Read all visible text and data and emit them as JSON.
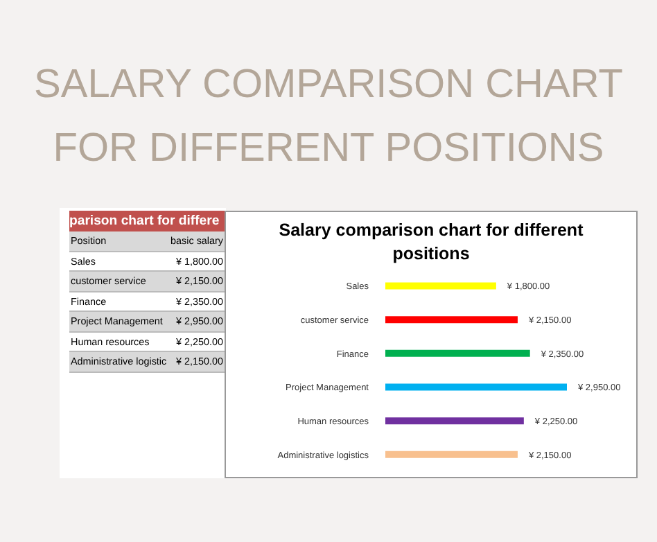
{
  "chart_data": [
    {
      "type": "other",
      "title": "SALARY COMPARISON CHART FOR DIFFERENT POSITIONS",
      "subtitle": "parison chart for differe",
      "annotations": [
        "Position",
        "basic salary",
        "Sales",
        "¥ 1,800.00",
        "customer service",
        "¥ 2,150.00",
        "Finance",
        "¥ 2,350.00",
        "Project Management",
        "¥ 2,950.00",
        "Human resources",
        "¥ 2,250.00",
        "Administrative logistic",
        "¥ 2,150.00"
      ]
    },
    {
      "type": "bar",
      "orientation": "horizontal",
      "title": "Salary comparison chart for different positions",
      "categories": [
        "Sales",
        "customer service",
        "Finance",
        "Project Management",
        "Human resources",
        "Administrative logistics"
      ],
      "values": [
        1800,
        2150,
        2350,
        2950,
        2250,
        2150
      ],
      "colors": [
        "#ffff00",
        "#ff0000",
        "#00b050",
        "#00b0f0",
        "#7030a0",
        "#f8c08e"
      ],
      "value_labels": [
        "¥ 1,800.00",
        "¥ 2,150.00",
        "¥ 2,350.00",
        "¥ 2,950.00",
        "¥ 2,250.00",
        "¥ 2,150.00"
      ]
    }
  ]
}
